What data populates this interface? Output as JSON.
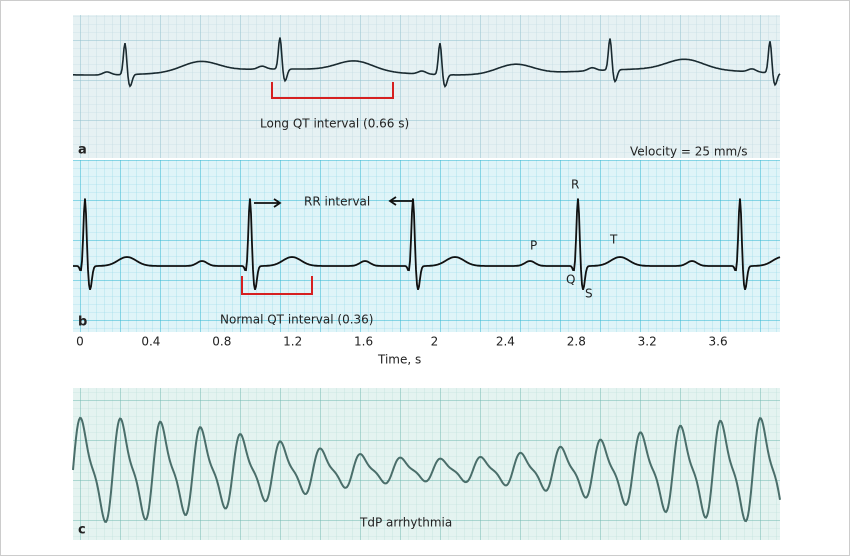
{
  "panels": {
    "a": {
      "label": "a",
      "annotation": "Long QT interval (0.66 s)",
      "velocity": "Velocity = 25 mm/s"
    },
    "b": {
      "label": "b",
      "rr": "RR interval",
      "qt": "Normal QT interval (0.36)",
      "waves": {
        "p": "P",
        "r": "R",
        "t": "T",
        "q": "Q",
        "s": "S"
      },
      "time_axis": {
        "ticks": [
          "0",
          "0.4",
          "0.8",
          "1.2",
          "1.6",
          "2",
          "2.4",
          "2.8",
          "3.2",
          "3.6"
        ],
        "title": "Time, s"
      }
    },
    "c": {
      "label": "c",
      "annotation": "TdP arrhythmia"
    }
  }
}
